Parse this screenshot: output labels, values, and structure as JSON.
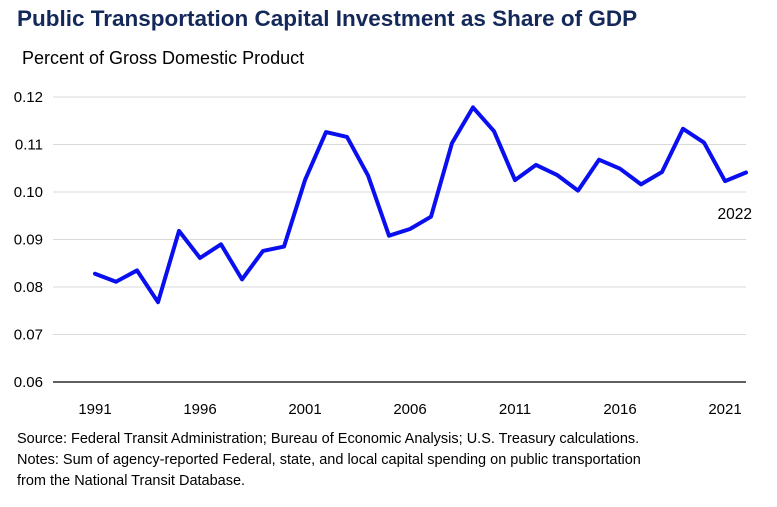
{
  "title": "Public Transportation Capital Investment as Share of GDP",
  "subtitle": "Percent of Gross Domestic Product",
  "source": "Source: Federal Transit Administration; Bureau of Economic Analysis; U.S. Treasury calculations.",
  "notes_line1": "Notes: Sum of agency-reported Federal, state, and local capital spending on public transportation",
  "notes_line2": "from the National Transit Database.",
  "chart_data": {
    "type": "line",
    "title": "Public Transportation Capital Investment as Share of GDP",
    "subtitle": "Percent of Gross Domestic Product",
    "xlabel": "",
    "ylabel": "",
    "x": [
      1991,
      1992,
      1993,
      1994,
      1995,
      1996,
      1997,
      1998,
      1999,
      2000,
      2001,
      2002,
      2003,
      2004,
      2005,
      2006,
      2007,
      2008,
      2009,
      2010,
      2011,
      2012,
      2013,
      2014,
      2015,
      2016,
      2017,
      2018,
      2019,
      2020,
      2021,
      2022
    ],
    "series": [
      {
        "values": [
          0.0828,
          0.0811,
          0.0835,
          0.0768,
          0.0918,
          0.0861,
          0.089,
          0.0816,
          0.0876,
          0.0885,
          0.1025,
          0.1126,
          0.1116,
          0.1035,
          0.0908,
          0.0922,
          0.0948,
          0.1103,
          0.1178,
          0.1128,
          0.1025,
          0.1057,
          0.1036,
          0.1003,
          0.1068,
          0.1049,
          0.1016,
          0.1042,
          0.1133,
          0.1104,
          0.1023,
          0.1041
        ],
        "color": "#0a0ff0"
      }
    ],
    "ylim": [
      0.06,
      0.12
    ],
    "yticks": [
      "0.06",
      "0.07",
      "0.08",
      "0.09",
      "0.10",
      "0.11",
      "0.12"
    ],
    "xticks": [
      "1991",
      "1996",
      "2001",
      "2006",
      "2011",
      "2016",
      "2021"
    ],
    "annotation": "2022",
    "grid": true,
    "legend": "none"
  }
}
